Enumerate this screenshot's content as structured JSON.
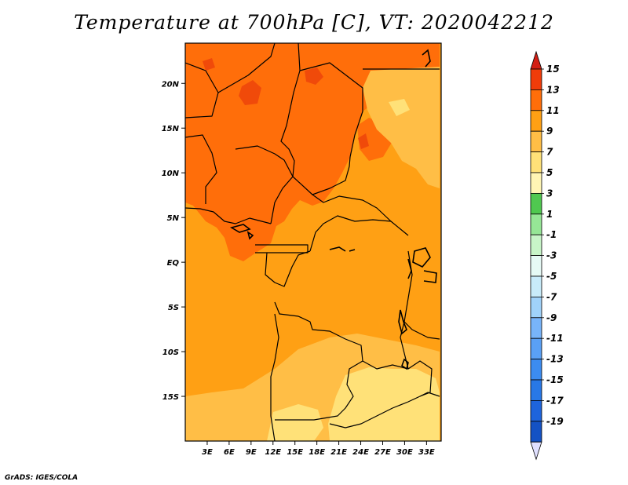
{
  "title": "Temperature at 700hPa [C], VT: 2020042212",
  "credit": "GrADS: IGES/COLA",
  "map": {
    "region": "Central Africa",
    "variable": "Temperature at 700hPa",
    "units": "C",
    "valid_time": "2020042212",
    "lon_range": [
      0,
      35
    ],
    "lat_range": [
      -20,
      24.5
    ],
    "lon_ticks": [
      3,
      6,
      9,
      12,
      15,
      18,
      21,
      24,
      27,
      30,
      33
    ],
    "lon_tick_labels": [
      "3E",
      "6E",
      "9E",
      "12E",
      "15E",
      "18E",
      "21E",
      "24E",
      "27E",
      "30E",
      "33E"
    ],
    "lat_ticks": [
      20,
      15,
      10,
      5,
      0,
      -5,
      -10,
      -15
    ],
    "lat_tick_labels": [
      "20N",
      "15N",
      "10N",
      "5N",
      "EQ",
      "5S",
      "10S",
      "15S"
    ]
  },
  "colorbar": {
    "levels": [
      -19,
      -17,
      -15,
      -13,
      -11,
      -9,
      -7,
      -5,
      -3,
      -1,
      1,
      3,
      5,
      7,
      9,
      11,
      13,
      15
    ],
    "labels": [
      "15",
      "13",
      "11",
      "9",
      "7",
      "5",
      "3",
      "1",
      "-1",
      "-3",
      "-5",
      "-7",
      "-9",
      "-11",
      "-13",
      "-15",
      "-17",
      "-19"
    ],
    "colors": [
      "#1e1e86",
      "#1452c4",
      "#1e64dc",
      "#2878e6",
      "#3c8cf0",
      "#5aa0f5",
      "#78b4fa",
      "#a0d2fa",
      "#c8ebfa",
      "#e6faf5",
      "#c8f5c8",
      "#96e696",
      "#50c850",
      "#fff5b4",
      "#ffe178",
      "#ffbe46",
      "#ffa014",
      "#ff6e0a",
      "#f03c0a",
      "#d21e14"
    ],
    "under_color": "#e0e0ff",
    "over_color": "#d21e14"
  }
}
